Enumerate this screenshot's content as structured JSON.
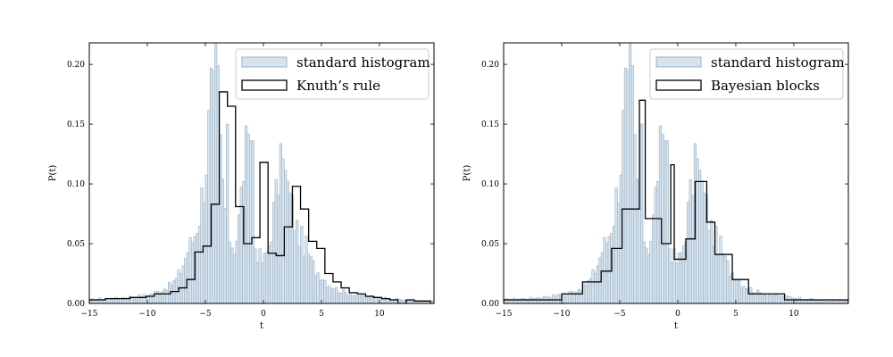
{
  "colors": {
    "hist_fill": "#d4e4f0",
    "hist_edge": "#9fb0bf",
    "step_line": "#000000",
    "axis": "#000000",
    "legend_border": "#cccccc"
  },
  "chart_data": [
    {
      "type": "histogram",
      "xlabel": "t",
      "ylabel": "P(t)",
      "xlim": [
        -15,
        14.7
      ],
      "ylim": [
        0,
        0.218
      ],
      "xticks": [
        -15,
        -10,
        -5,
        0,
        5,
        10
      ],
      "yticks": [
        0.0,
        0.05,
        0.1,
        0.15,
        0.2
      ],
      "xtick_labels": [
        "−15",
        "−10",
        "−5",
        "0",
        "5",
        "10"
      ],
      "ytick_labels": [
        "0.00",
        "0.05",
        "0.10",
        "0.15",
        "0.20"
      ],
      "legend": {
        "position": "upper right",
        "entries": [
          "standard histogram",
          "Knuth’s rule"
        ]
      },
      "series": [
        {
          "name": "standard histogram",
          "style": "filled",
          "bin_width": 0.2,
          "bin_start": -15,
          "values_note": "fine histogram approximated by the density curve below, with visible spikes",
          "density_x": [
            -15,
            -14,
            -13,
            -12,
            -11,
            -10,
            -9,
            -8,
            -7.5,
            -7,
            -6.5,
            -6,
            -5.5,
            -5,
            -4.6,
            -4.3,
            -4.1,
            -3.9,
            -3.7,
            -3.4,
            -3.1,
            -2.8,
            -2.5,
            -2.2,
            -1.9,
            -1.6,
            -1.3,
            -1.0,
            -0.7,
            -0.4,
            -0.1,
            0.2,
            0.5,
            0.8,
            1.1,
            1.4,
            1.7,
            2.0,
            2.3,
            2.6,
            2.9,
            3.2,
            3.5,
            3.8,
            4.1,
            4.5,
            5.0,
            5.5,
            6.0,
            6.5,
            7.0,
            8.0,
            9.0,
            10.0,
            11.0,
            12.0,
            13.0,
            14.7
          ],
          "density_y": [
            0.003,
            0.004,
            0.004,
            0.005,
            0.006,
            0.007,
            0.01,
            0.015,
            0.02,
            0.03,
            0.045,
            0.055,
            0.075,
            0.11,
            0.16,
            0.2,
            0.18,
            0.175,
            0.13,
            0.085,
            0.068,
            0.052,
            0.048,
            0.06,
            0.09,
            0.13,
            0.118,
            0.075,
            0.048,
            0.04,
            0.035,
            0.038,
            0.05,
            0.07,
            0.09,
            0.11,
            0.112,
            0.1,
            0.088,
            0.075,
            0.062,
            0.055,
            0.05,
            0.045,
            0.035,
            0.028,
            0.024,
            0.017,
            0.014,
            0.011,
            0.009,
            0.007,
            0.006,
            0.005,
            0.004,
            0.003,
            0.002,
            0.002
          ]
        },
        {
          "name": "Knuth’s rule",
          "style": "step",
          "edges": [
            -15,
            -14.3,
            -13.6,
            -12.9,
            -12.2,
            -11.5,
            -10.8,
            -10.1,
            -9.4,
            -8.7,
            -8.0,
            -7.3,
            -6.6,
            -5.9,
            -5.2,
            -4.5,
            -3.8,
            -3.1,
            -2.4,
            -1.7,
            -1.0,
            -0.3,
            0.4,
            1.1,
            1.8,
            2.5,
            3.2,
            3.9,
            4.6,
            5.3,
            6.0,
            6.7,
            7.4,
            8.1,
            8.8,
            9.5,
            10.2,
            10.9,
            11.6,
            12.3,
            13.0,
            13.7,
            14.4
          ],
          "values": [
            0.003,
            0.003,
            0.004,
            0.004,
            0.004,
            0.005,
            0.005,
            0.006,
            0.008,
            0.008,
            0.01,
            0.013,
            0.02,
            0.043,
            0.048,
            0.083,
            0.177,
            0.165,
            0.081,
            0.05,
            0.055,
            0.118,
            0.042,
            0.04,
            0.064,
            0.098,
            0.079,
            0.052,
            0.046,
            0.025,
            0.018,
            0.013,
            0.009,
            0.008,
            0.006,
            0.005,
            0.004,
            0.003,
            0.0,
            0.003,
            0.002,
            0.002
          ]
        }
      ]
    },
    {
      "type": "histogram",
      "xlabel": "t",
      "ylabel": "P(t)",
      "xlim": [
        -15,
        14.7
      ],
      "ylim": [
        0,
        0.218
      ],
      "xticks": [
        -15,
        -10,
        -5,
        0,
        5,
        10
      ],
      "yticks": [
        0.0,
        0.05,
        0.1,
        0.15,
        0.2
      ],
      "xtick_labels": [
        "−15",
        "−10",
        "−5",
        "0",
        "5",
        "10"
      ],
      "ytick_labels": [
        "0.00",
        "0.05",
        "0.10",
        "0.15",
        "0.20"
      ],
      "legend": {
        "position": "upper right",
        "entries": [
          "standard histogram",
          "Bayesian blocks"
        ]
      },
      "series": [
        {
          "name": "standard histogram",
          "style": "filled",
          "bin_width": 0.2,
          "bin_start": -15,
          "values_note": "same underlying data as the left panel"
        },
        {
          "name": "Bayesian blocks",
          "style": "step",
          "edges": [
            -15,
            -10.0,
            -8.2,
            -6.6,
            -5.7,
            -4.8,
            -3.3,
            -2.8,
            -1.4,
            -0.6,
            -0.3,
            0.7,
            1.5,
            2.5,
            3.2,
            4.7,
            6.1,
            9.2,
            14.7
          ],
          "values": [
            0.003,
            0.008,
            0.018,
            0.027,
            0.046,
            0.079,
            0.17,
            0.071,
            0.05,
            0.116,
            0.037,
            0.054,
            0.102,
            0.068,
            0.041,
            0.02,
            0.008,
            0.003
          ]
        }
      ]
    }
  ]
}
